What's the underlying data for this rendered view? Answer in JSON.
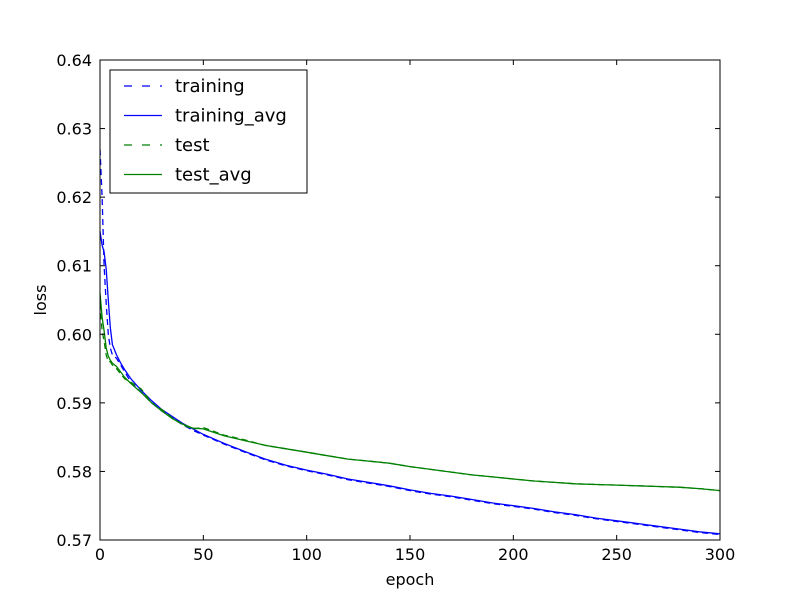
{
  "chart_data": {
    "type": "line",
    "title": "",
    "xlabel": "epoch",
    "ylabel": "loss",
    "xlim": [
      0,
      300
    ],
    "ylim": [
      0.57,
      0.64
    ],
    "xticks": [
      "0",
      "50",
      "100",
      "150",
      "200",
      "250",
      "300"
    ],
    "yticks": [
      "0.57",
      "0.58",
      "0.59",
      "0.60",
      "0.61",
      "0.62",
      "0.63",
      "0.64"
    ],
    "grid": false,
    "legend_position": "top-left",
    "x": [
      0,
      1,
      2,
      3,
      4,
      5,
      6,
      8,
      10,
      12,
      15,
      20,
      25,
      30,
      35,
      40,
      45,
      50,
      60,
      70,
      80,
      90,
      100,
      110,
      120,
      130,
      140,
      150,
      160,
      170,
      180,
      190,
      200,
      210,
      220,
      230,
      240,
      250,
      260,
      270,
      280,
      290,
      300
    ],
    "series": [
      {
        "name": "training",
        "color": "#0000ff",
        "style": "dashed",
        "values": [
          0.627,
          0.62,
          0.61,
          0.6045,
          0.6,
          0.598,
          0.597,
          0.5965,
          0.5955,
          0.5945,
          0.593,
          0.5915,
          0.59,
          0.5888,
          0.5878,
          0.5868,
          0.586,
          0.5853,
          0.584,
          0.5828,
          0.5817,
          0.5808,
          0.5801,
          0.5795,
          0.5788,
          0.5783,
          0.5778,
          0.5772,
          0.5767,
          0.5763,
          0.5758,
          0.5753,
          0.5749,
          0.5745,
          0.574,
          0.5736,
          0.5731,
          0.5727,
          0.5723,
          0.5719,
          0.5715,
          0.5711,
          0.5708
        ]
      },
      {
        "name": "training_avg",
        "color": "#0000ff",
        "style": "solid",
        "values": [
          0.615,
          0.613,
          0.612,
          0.6095,
          0.605,
          0.601,
          0.5985,
          0.597,
          0.5958,
          0.5948,
          0.5935,
          0.5918,
          0.5903,
          0.589,
          0.588,
          0.587,
          0.5862,
          0.5854,
          0.5841,
          0.5829,
          0.5818,
          0.5809,
          0.5802,
          0.5796,
          0.5789,
          0.5784,
          0.5779,
          0.5773,
          0.5768,
          0.5764,
          0.5759,
          0.5754,
          0.575,
          0.5746,
          0.5741,
          0.5737,
          0.5732,
          0.5728,
          0.5724,
          0.572,
          0.5716,
          0.5712,
          0.5709
        ]
      },
      {
        "name": "test",
        "color": "#008000",
        "style": "dashed",
        "values": [
          0.6045,
          0.6005,
          0.599,
          0.597,
          0.596,
          0.596,
          0.5955,
          0.595,
          0.5942,
          0.5935,
          0.593,
          0.592,
          0.59,
          0.589,
          0.5878,
          0.5868,
          0.5862,
          0.5864,
          0.5853,
          0.5846,
          0.5838,
          0.5833,
          0.5828,
          0.5823,
          0.5818,
          0.5815,
          0.5812,
          0.5807,
          0.5803,
          0.5799,
          0.5795,
          0.5792,
          0.5789,
          0.5786,
          0.5784,
          0.5782,
          0.5781,
          0.578,
          0.5779,
          0.5778,
          0.5777,
          0.5775,
          0.5772
        ]
      },
      {
        "name": "test_avg",
        "color": "#008000",
        "style": "solid",
        "values": [
          0.606,
          0.6025,
          0.6005,
          0.598,
          0.5968,
          0.5962,
          0.5958,
          0.5953,
          0.5945,
          0.5937,
          0.5928,
          0.5915,
          0.59,
          0.5888,
          0.5877,
          0.5869,
          0.5863,
          0.5862,
          0.5852,
          0.5845,
          0.5838,
          0.5833,
          0.5828,
          0.5823,
          0.5818,
          0.5815,
          0.5812,
          0.5807,
          0.5803,
          0.5799,
          0.5795,
          0.5792,
          0.5789,
          0.5786,
          0.5784,
          0.5782,
          0.5781,
          0.578,
          0.5779,
          0.5778,
          0.5777,
          0.5775,
          0.5772
        ]
      }
    ]
  }
}
